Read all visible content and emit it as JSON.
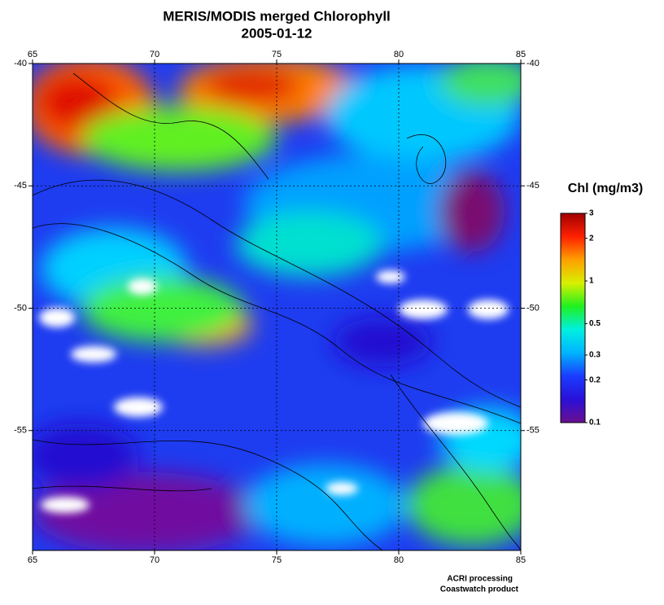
{
  "header": {
    "title": "MERIS/MODIS merged Chlorophyll",
    "date": "2005-01-12"
  },
  "map": {
    "lonlim": [
      65,
      85
    ],
    "latlim": [
      -40,
      -59.9
    ],
    "lon_ticks": [
      65,
      70,
      75,
      80,
      85
    ],
    "lat_ticks": [
      -40,
      -45,
      -50,
      -55
    ],
    "grid": true
  },
  "colorbar": {
    "label": "Chl (mg/m3)",
    "lim": [
      0.1,
      3
    ],
    "log": true,
    "ticks": [
      3,
      2,
      1,
      0.5,
      0.3,
      0.2,
      0.1
    ],
    "colors": [
      "#6a0f8e",
      "#2a10d8",
      "#1a3cff",
      "#00b4ff",
      "#00f0e0",
      "#20f020",
      "#d8f000",
      "#ffa000",
      "#ff2000",
      "#a00000"
    ]
  },
  "credits": {
    "line1": "ACRI processing",
    "line2": "Coastwatch product"
  }
}
